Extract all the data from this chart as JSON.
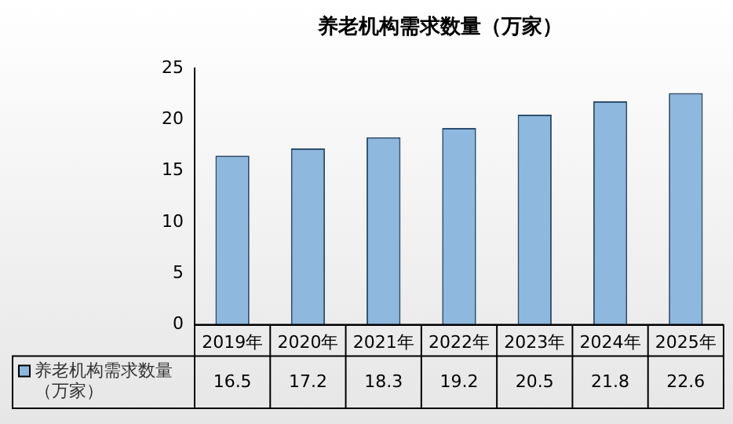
{
  "chart_data": {
    "type": "bar",
    "title": "养老机构需求数量（万家）",
    "categories": [
      "2019年",
      "2020年",
      "2021年",
      "2022年",
      "2023年",
      "2024年",
      "2025年"
    ],
    "series": [
      {
        "name": "养老机构需求数量（万家）",
        "color": "#8fb8de",
        "values": [
          16.5,
          17.2,
          18.3,
          19.2,
          20.5,
          21.8,
          22.6
        ]
      }
    ],
    "ylim": [
      0,
      25
    ],
    "yticks": [
      0,
      5,
      10,
      15,
      20,
      25
    ],
    "grid": false,
    "data_labels": true
  }
}
